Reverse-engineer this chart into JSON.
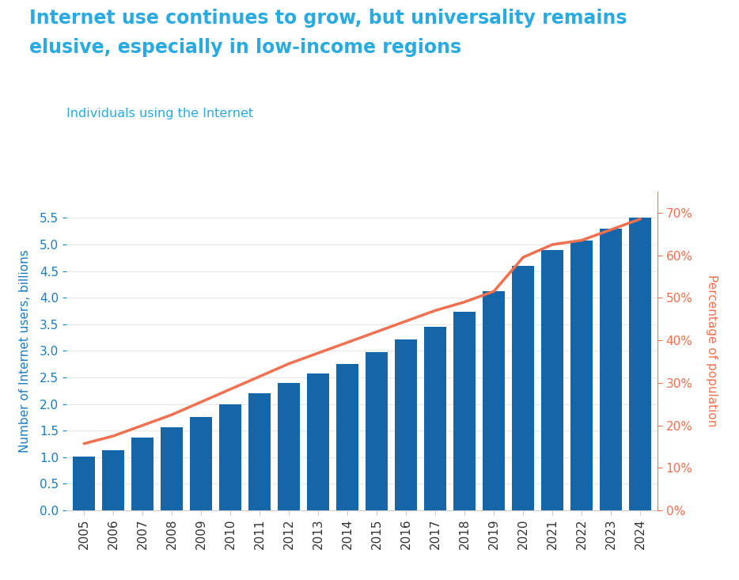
{
  "title_line1": "Internet use continues to grow, but universality remains",
  "title_line2": "elusive, especially in low-income regions",
  "subtitle": "Individuals using the Internet",
  "ylabel_left": "Number of Internet users, billions",
  "ylabel_right": "Percentage of population",
  "years": [
    2005,
    2006,
    2007,
    2008,
    2009,
    2010,
    2011,
    2012,
    2013,
    2014,
    2015,
    2016,
    2017,
    2018,
    2019,
    2020,
    2021,
    2022,
    2023,
    2024
  ],
  "bar_values": [
    1.02,
    1.13,
    1.37,
    1.57,
    1.76,
    2.0,
    2.2,
    2.4,
    2.57,
    2.75,
    2.98,
    3.22,
    3.46,
    3.73,
    4.13,
    4.6,
    4.9,
    5.07,
    5.3,
    5.5
  ],
  "line_values": [
    15.7,
    17.5,
    20.0,
    22.5,
    25.5,
    28.5,
    31.5,
    34.5,
    37.0,
    39.5,
    42.0,
    44.5,
    47.0,
    49.0,
    51.5,
    59.5,
    62.5,
    63.5,
    66.0,
    68.5
  ],
  "bar_color": "#1565a9",
  "line_color": "#f07050",
  "title_color": "#29abe2",
  "subtitle_color": "#29abe2",
  "left_axis_color": "#1a7cc2",
  "right_axis_color": "#f07050",
  "ylim_left": [
    0,
    6.0
  ],
  "ylim_right": [
    0,
    75
  ],
  "yticks_left": [
    0.0,
    0.5,
    1.0,
    1.5,
    2.0,
    2.5,
    3.0,
    3.5,
    4.0,
    4.5,
    5.0,
    5.5
  ],
  "yticks_right": [
    0,
    10,
    20,
    30,
    40,
    50,
    60,
    70
  ],
  "background_color": "#ffffff",
  "grid_color": "#e8e8e8"
}
